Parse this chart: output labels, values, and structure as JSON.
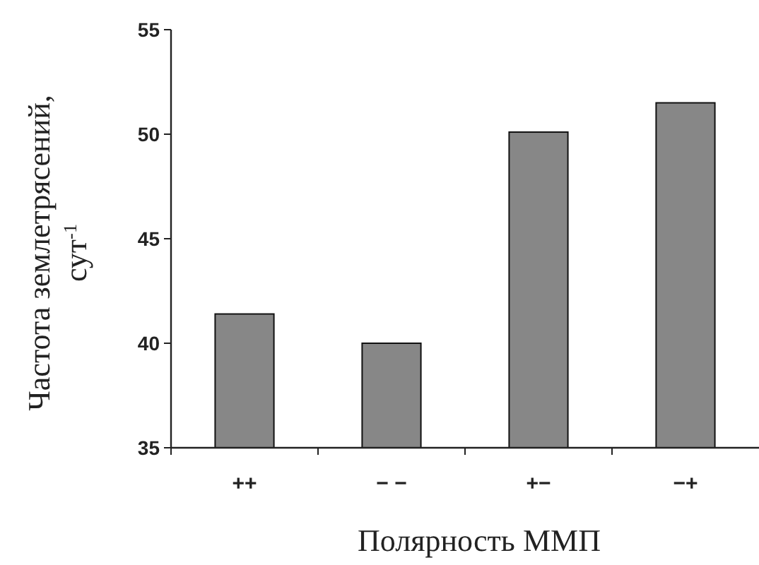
{
  "chart_data": {
    "type": "bar",
    "xlabel": "Полярность ММП",
    "ylabel": "Частота землетрясений, сут$^{-1}$",
    "categories": [
      "++",
      "− −",
      "+−",
      "−+"
    ],
    "values": [
      41.4,
      40.0,
      50.1,
      51.5
    ],
    "color": "#878787",
    "ylim": [
      35,
      55
    ],
    "yticks": [
      35,
      40,
      45,
      50,
      55
    ],
    "grid": false
  }
}
